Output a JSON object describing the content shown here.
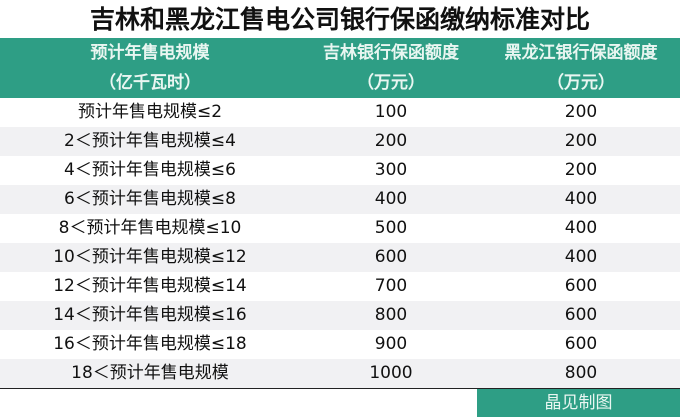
{
  "title": "吉林和黑龙江售电公司银行保函缴纳标准对比",
  "header": {
    "col1": [
      "预计年售电规模",
      "（亿千瓦时）"
    ],
    "col2": [
      "吉林银行保函额度",
      "（万元）"
    ],
    "col3": [
      "黑龙江银行保函额度",
      "（万元）"
    ]
  },
  "rows": [
    [
      "预计年售电规模≤2",
      "100",
      "200"
    ],
    [
      "2＜预计年售电规模≤4",
      "200",
      "200"
    ],
    [
      "4＜预计年售电规模≤6",
      "300",
      "200"
    ],
    [
      "6＜预计年售电规模≤8",
      "400",
      "400"
    ],
    [
      "8＜预计年售电规模≤10",
      "500",
      "400"
    ],
    [
      "10＜预计年售电规模≤12",
      "600",
      "400"
    ],
    [
      "12＜预计年售电规模≤14",
      "700",
      "600"
    ],
    [
      "14＜预计年售电规模≤16",
      "800",
      "600"
    ],
    [
      "16＜预计年售电规模≤18",
      "900",
      "600"
    ],
    [
      "18＜预计年售电规模",
      "1000",
      "800"
    ]
  ],
  "footer": "晶见制图",
  "colors": {
    "header_bg": "#2e9e85",
    "alt_row": "#f1f1f3"
  }
}
